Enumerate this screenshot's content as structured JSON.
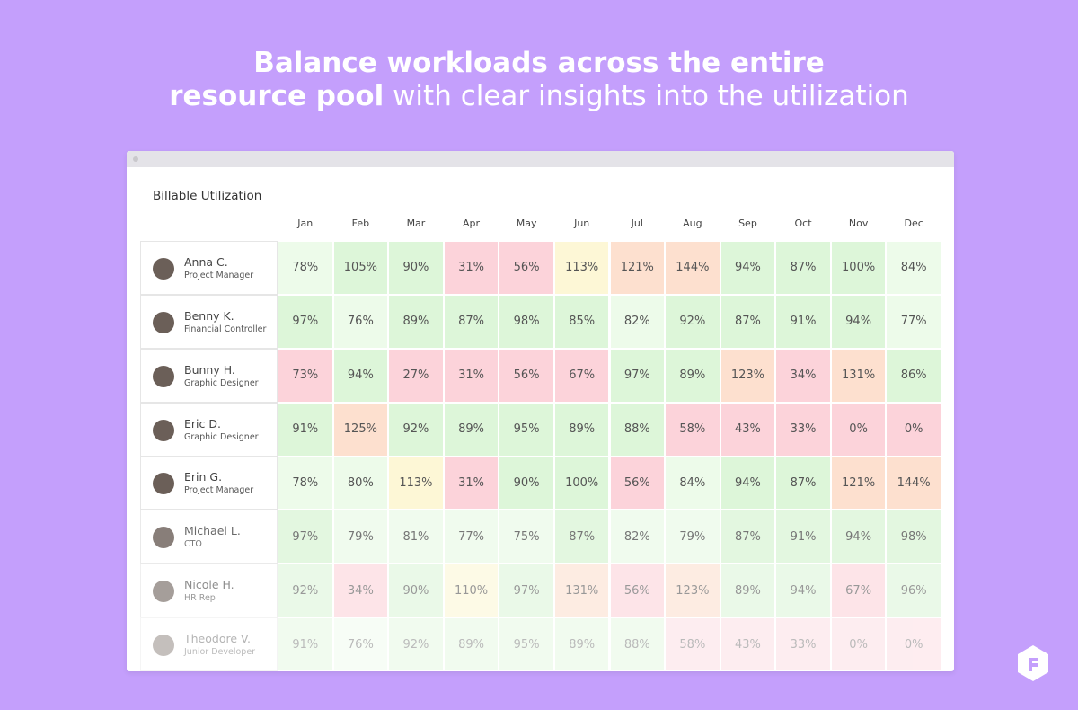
{
  "header": {
    "title_line1": "Balance workloads across the entire",
    "title_line2_bold": "resource pool",
    "title_line2_regular": "with clear insights into the utilization"
  },
  "table": {
    "title": "Billable Utilization",
    "months": [
      "Jan",
      "Feb",
      "Mar",
      "Apr",
      "May",
      "Jun",
      "Jul",
      "Aug",
      "Sep",
      "Oct",
      "Nov",
      "Dec"
    ],
    "rows": [
      {
        "name": "Anna C.",
        "role": "Project Manager",
        "cells": [
          "78%",
          "105%",
          "90%",
          "31%",
          "56%",
          "113%",
          "121%",
          "144%",
          "94%",
          "87%",
          "100%",
          "84%"
        ]
      },
      {
        "name": "Benny K.",
        "role": "Financial Controller",
        "cells": [
          "97%",
          "76%",
          "89%",
          "87%",
          "98%",
          "85%",
          "82%",
          "92%",
          "87%",
          "91%",
          "94%",
          "77%"
        ]
      },
      {
        "name": "Bunny H.",
        "role": "Graphic Designer",
        "cells": [
          "73%",
          "94%",
          "27%",
          "31%",
          "56%",
          "67%",
          "97%",
          "89%",
          "123%",
          "34%",
          "131%",
          "86%"
        ]
      },
      {
        "name": "Eric D.",
        "role": "Graphic Designer",
        "cells": [
          "91%",
          "125%",
          "92%",
          "89%",
          "95%",
          "89%",
          "88%",
          "58%",
          "43%",
          "33%",
          "0%",
          "0%"
        ]
      },
      {
        "name": "Erin G.",
        "role": "Project Manager",
        "cells": [
          "78%",
          "80%",
          "113%",
          "31%",
          "90%",
          "100%",
          "56%",
          "84%",
          "94%",
          "87%",
          "121%",
          "144%"
        ]
      },
      {
        "name": "Michael L.",
        "role": "CTO",
        "cells": [
          "97%",
          "79%",
          "81%",
          "77%",
          "75%",
          "87%",
          "82%",
          "79%",
          "87%",
          "91%",
          "94%",
          "98%"
        ]
      },
      {
        "name": "Nicole H.",
        "role": "HR Rep",
        "cells": [
          "92%",
          "34%",
          "90%",
          "110%",
          "97%",
          "131%",
          "56%",
          "123%",
          "89%",
          "94%",
          "67%",
          "96%"
        ]
      },
      {
        "name": "Theodore V.",
        "role": "Junior Developer",
        "cells": [
          "91%",
          "76%",
          "92%",
          "89%",
          "95%",
          "89%",
          "88%",
          "58%",
          "43%",
          "33%",
          "0%",
          "0%"
        ]
      }
    ]
  }
}
